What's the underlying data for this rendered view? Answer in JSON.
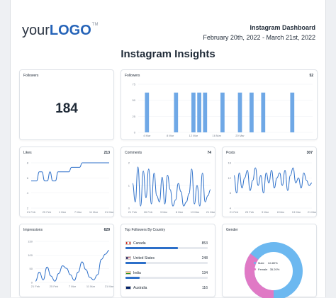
{
  "header": {
    "logo_prefix": "your",
    "logo_main": "LOGO",
    "logo_mark": "TM",
    "dashboard_title": "Instagram Dashboard",
    "date_range": "February 20th, 2022 - March 21st, 2022",
    "page_title": "Instagram Insights"
  },
  "colors": {
    "bar": "#6fa8e6",
    "line": "#2c6fc9",
    "male": "#6cb8f0",
    "female": "#e079c5"
  },
  "cards": {
    "followers_total": {
      "label": "Followers",
      "value": "184"
    },
    "followers_chart": {
      "label": "Followers",
      "value": "52"
    },
    "likes": {
      "label": "Likes",
      "value": "213"
    },
    "comments": {
      "label": "Comments",
      "value": "74"
    },
    "posts": {
      "label": "Posts",
      "value": "307"
    },
    "impressions": {
      "label": "Impressions",
      "value": "629"
    },
    "top_followers": {
      "label": "Top Followers By Country"
    },
    "gender": {
      "label": "Gender"
    }
  },
  "countries": [
    {
      "name": "Canada",
      "count": "853",
      "share": 0.64,
      "flag": "canada-flag-icon"
    },
    {
      "name": "United States",
      "count": "248",
      "share": 0.25,
      "flag": "us-flag-icon"
    },
    {
      "name": "India",
      "count": "134",
      "share": 0.17,
      "flag": "india-flag-icon"
    },
    {
      "name": "Australia",
      "count": "116",
      "share": 0.14,
      "flag": "australia-flag-icon"
    }
  ],
  "gender": {
    "male_label": "Male",
    "male_pct": "64.80%",
    "female_label": "Female",
    "female_pct": "35.20%",
    "male_value": 64.8,
    "female_value": 35.2
  },
  "chart_data": [
    {
      "type": "bar",
      "name": "followers",
      "y_ticks": [
        "75",
        "50",
        "25",
        "0"
      ],
      "x_ticks": [
        "4 Mar",
        "8 Mar",
        "12 Mar",
        "16 Mar",
        "20 Mar"
      ],
      "ylim": [
        0,
        75
      ],
      "x_tick_positions": [
        1,
        5,
        9,
        13,
        17
      ],
      "values": [
        0,
        62,
        0,
        0,
        0,
        0,
        62,
        0,
        0,
        62,
        62,
        62,
        0,
        0,
        62,
        0,
        0,
        62,
        0,
        62,
        0,
        62,
        0,
        0,
        0,
        0,
        62,
        0,
        0,
        0
      ],
      "grid": true
    },
    {
      "type": "line",
      "name": "likes",
      "y_ticks": [
        "8",
        "6",
        "4",
        "2"
      ],
      "x_ticks": [
        "21 Feb",
        "25 Feb",
        "1 Mar",
        "7 Mar",
        "11 Mar",
        "21 Mar"
      ],
      "ylim": [
        0,
        10
      ],
      "values": [
        6,
        6,
        6,
        8,
        8,
        6,
        6,
        8,
        6,
        6,
        8,
        8,
        8,
        8,
        8,
        9,
        9,
        9,
        9,
        10,
        10,
        10,
        10,
        10,
        10,
        10,
        10,
        10,
        10,
        10
      ]
    },
    {
      "type": "line",
      "name": "comments",
      "y_ticks": [
        "2",
        "1",
        "0"
      ],
      "x_ticks": [
        "21 Feb",
        "26 Feb",
        "3 Mar",
        "8 Mar",
        "13 Mar",
        "21 Mar"
      ],
      "ylim": [
        0,
        2.2
      ],
      "values": [
        1.2,
        0.3,
        2.0,
        0.1,
        1.8,
        0.5,
        1.9,
        0.2,
        1.7,
        0.6,
        0.3,
        1.5,
        0.2,
        1.6,
        0.9,
        0.1,
        0.4,
        1.2,
        0.8,
        0.1,
        0.3,
        0.7,
        1.9,
        0.2,
        1.1,
        0.1,
        1.7,
        0.3,
        0.6,
        0.9
      ]
    },
    {
      "type": "line",
      "name": "posts",
      "y_ticks": [
        "16",
        "12",
        "8",
        "4"
      ],
      "x_ticks": [
        "21 Feb",
        "25 Feb",
        "3 Mar",
        "8 Mar",
        "13 Mar",
        "21 Mar"
      ],
      "ylim": [
        0,
        18
      ],
      "values": [
        13,
        6,
        14,
        8,
        12,
        15,
        7,
        11,
        16,
        9,
        13,
        6,
        14,
        10,
        15,
        8,
        12,
        14,
        9,
        15,
        7,
        13,
        16,
        10,
        12,
        8,
        14,
        11,
        9,
        10
      ]
    },
    {
      "type": "line",
      "name": "impressions",
      "y_ticks": [
        "150",
        "100",
        "50",
        "0"
      ],
      "x_ticks": [
        "21 Feb",
        "25 Feb",
        "7 Mar",
        "11 Mar",
        "21 Mar"
      ],
      "ylim": [
        0,
        160
      ],
      "values": [
        5,
        40,
        10,
        60,
        25,
        5,
        35,
        65,
        55,
        30,
        8,
        40,
        80,
        50,
        20,
        10,
        30,
        90,
        110,
        125
      ]
    }
  ]
}
